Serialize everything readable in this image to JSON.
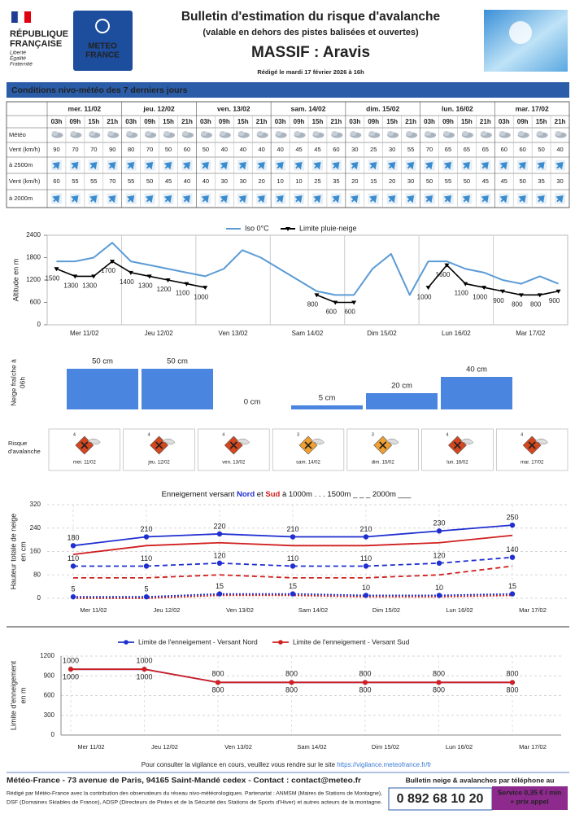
{
  "header": {
    "republic_lines": [
      "RÉPUBLIQUE",
      "FRANÇAISE"
    ],
    "motto_lines": [
      "Liberté",
      "Égalité",
      "Fraternité"
    ],
    "logo_lines": [
      "METEO",
      "FRANCE"
    ],
    "title": "Bulletin d'estimation du risque d'avalanche",
    "subtitle": "(valable en dehors des pistes balisées et ouvertes)",
    "massif": "MASSIF : Aravis",
    "date": "Rédigé le mardi 17 février 2026 à 16h"
  },
  "section": "Conditions nivo-météo des 7 derniers jours",
  "table": {
    "days": [
      "mer. 11/02",
      "jeu. 12/02",
      "ven. 13/02",
      "sam. 14/02",
      "dim. 15/02",
      "lun. 16/02",
      "mar. 17/02"
    ],
    "hours": [
      "03h",
      "09h",
      "15h",
      "21h"
    ],
    "row_labels": {
      "meteo": "Météo",
      "wind_2500": "Vent (km/h)",
      "dir_2500": "à 2500m",
      "wind_2000": "Vent (km/h)",
      "dir_2000": "à 2000m"
    },
    "wind_2500": [
      90,
      70,
      70,
      90,
      80,
      70,
      50,
      60,
      50,
      40,
      40,
      40,
      40,
      45,
      45,
      60,
      30,
      25,
      30,
      55,
      70,
      65,
      65,
      65,
      60,
      60,
      50,
      40
    ],
    "wind_2000": [
      60,
      55,
      55,
      70,
      55,
      50,
      45,
      40,
      40,
      30,
      30,
      20,
      10,
      10,
      25,
      35,
      20,
      15,
      20,
      30,
      50,
      55,
      50,
      45,
      45,
      50,
      35,
      30
    ]
  },
  "chart_data": [
    {
      "type": "line",
      "ylabel": "Altitude en m",
      "day_labels": [
        "Mer 11/02",
        "Jeu 12/02",
        "Ven 13/02",
        "Sam 14/02",
        "Dim 15/02",
        "Lun 16/02",
        "Mar 17/02"
      ],
      "slots_per_day": 4,
      "ylim": [
        0,
        2400
      ],
      "yticks": [
        0,
        600,
        1200,
        1800,
        2400
      ],
      "series": [
        {
          "name": "Iso 0°C",
          "color": "#5b9bd5",
          "values": [
            1700,
            1700,
            1800,
            2200,
            1700,
            1600,
            1500,
            1400,
            1300,
            1500,
            2000,
            1800,
            1500,
            1200,
            900,
            800,
            800,
            1500,
            1900,
            800,
            1700,
            1700,
            1500,
            1400,
            1200,
            1100,
            1300,
            1100
          ]
        },
        {
          "name": "Limite pluie-neige",
          "color": "#000000",
          "labels": true,
          "values": [
            1500,
            1300,
            1300,
            1700,
            1400,
            1300,
            1200,
            1100,
            1000,
            null,
            null,
            null,
            null,
            null,
            800,
            600,
            600,
            null,
            null,
            null,
            1000,
            1600,
            1100,
            1000,
            900,
            800,
            800,
            900
          ]
        }
      ]
    },
    {
      "type": "bar",
      "ylabel_lines": [
        "Neige fraîche à",
        "06h"
      ],
      "color": "#4a86e0",
      "ylim": [
        0,
        60
      ],
      "values": [
        50,
        50,
        0,
        5,
        20,
        40
      ],
      "value_labels": [
        "50 cm",
        "50 cm",
        "0 cm",
        "5 cm",
        "20 cm",
        "40 cm"
      ]
    },
    {
      "type": "line",
      "title_parts": [
        "Enneigement versant ",
        "Nord",
        " et ",
        "Sud",
        " à  1000m . . .   1500m _ _ _   2000m ___"
      ],
      "title_part_colors": [
        "#111111",
        "#1f2fd0",
        "#111111",
        "#d0201f",
        "#111111"
      ],
      "ylabel_lines": [
        "Hauteur totale de neige",
        "en cm"
      ],
      "categories": [
        "Mer 11/02",
        "Jeu 12/02",
        "Ven 13/02",
        "Sam 14/02",
        "Dim 15/02",
        "Lun 16/02",
        "Mar 17/02"
      ],
      "ylim": [
        0,
        320
      ],
      "yticks": [
        0,
        80,
        160,
        240,
        320
      ],
      "grid": true,
      "series": [
        {
          "color": "#d0201f",
          "dash": "solid",
          "values": [
            150,
            180,
            190,
            180,
            180,
            190,
            215
          ]
        },
        {
          "color": "#d0201f",
          "dash": "dashed",
          "values": [
            70,
            70,
            80,
            70,
            70,
            80,
            110
          ]
        },
        {
          "color": "#d0201f",
          "dash": "dotted",
          "values": [
            0,
            0,
            10,
            10,
            5,
            5,
            10
          ]
        },
        {
          "color": "#1f2fd0",
          "dash": "solid",
          "markers": true,
          "labels": true,
          "values": [
            180,
            210,
            220,
            210,
            210,
            230,
            250
          ]
        },
        {
          "color": "#1f2fd0",
          "dash": "dashed",
          "markers": true,
          "labels": true,
          "values": [
            110,
            110,
            120,
            110,
            110,
            120,
            140
          ]
        },
        {
          "color": "#1f2fd0",
          "dash": "dotted",
          "markers": true,
          "labels": true,
          "values": [
            5,
            5,
            15,
            15,
            10,
            10,
            15
          ]
        }
      ]
    },
    {
      "type": "line",
      "ylabel_lines": [
        "Limite d'enneigement",
        "en m"
      ],
      "categories": [
        "Mer 11/02",
        "Jeu 12/02",
        "Ven 13/02",
        "Sam 14/02",
        "Dim 15/02",
        "Lun 16/02",
        "Mar 17/02"
      ],
      "ylim": [
        0,
        1200
      ],
      "yticks": [
        0,
        300,
        600,
        900,
        1200
      ],
      "grid": true,
      "series": [
        {
          "name": "Limite de l'enneigement - Versant Nord",
          "color": "#1f2fd0",
          "label_position": "below",
          "values": [
            1000,
            1000,
            800,
            800,
            800,
            800,
            800
          ]
        },
        {
          "name": "Limite de l'enneigement - Versant Sud",
          "color": "#d0201f",
          "label_position": "above",
          "values": [
            1000,
            1000,
            800,
            800,
            800,
            800,
            800
          ]
        }
      ]
    }
  ],
  "risk": {
    "label_lines": [
      "Risque",
      "d'avalanche"
    ],
    "days": [
      "mer. 11/02",
      "jeu. 12/02",
      "ven. 13/02",
      "sam. 14/02",
      "dim. 15/02",
      "lun. 16/02",
      "mar. 17/02"
    ],
    "levels": [
      4,
      4,
      4,
      3,
      3,
      4,
      4
    ],
    "level_colors": {
      "3": "#f0a030",
      "4": "#d4461e"
    }
  },
  "footer": {
    "vigilance": "Pour consulter la vigilance en cours, veuillez vous rendre sur le site ",
    "link": "https://vigilance.meteofrance.fr/fr",
    "address": "Météo-France - 73 avenue de Paris, 94165 Saint-Mandé cedex - Contact : contact@meteo.fr",
    "phone_title": "Bulletin neige & avalanches par téléphone au",
    "phone": "0 892 68 10 20",
    "service_lines": [
      "Service 0,35 € / min",
      "+ prix appel"
    ],
    "credits_lines": [
      "Rédigé par Météo-France avec la contribution des observateurs du réseau nivo-météorologiques. Partenariat : ANMSM (Maires de Stations de Montagne),",
      "DSF (Domaines Skiables de France), ADSP (Directeurs de Pistes et de la Sécurité des Stations de Sports d'Hiver) et autres acteurs de la montagne."
    ]
  }
}
